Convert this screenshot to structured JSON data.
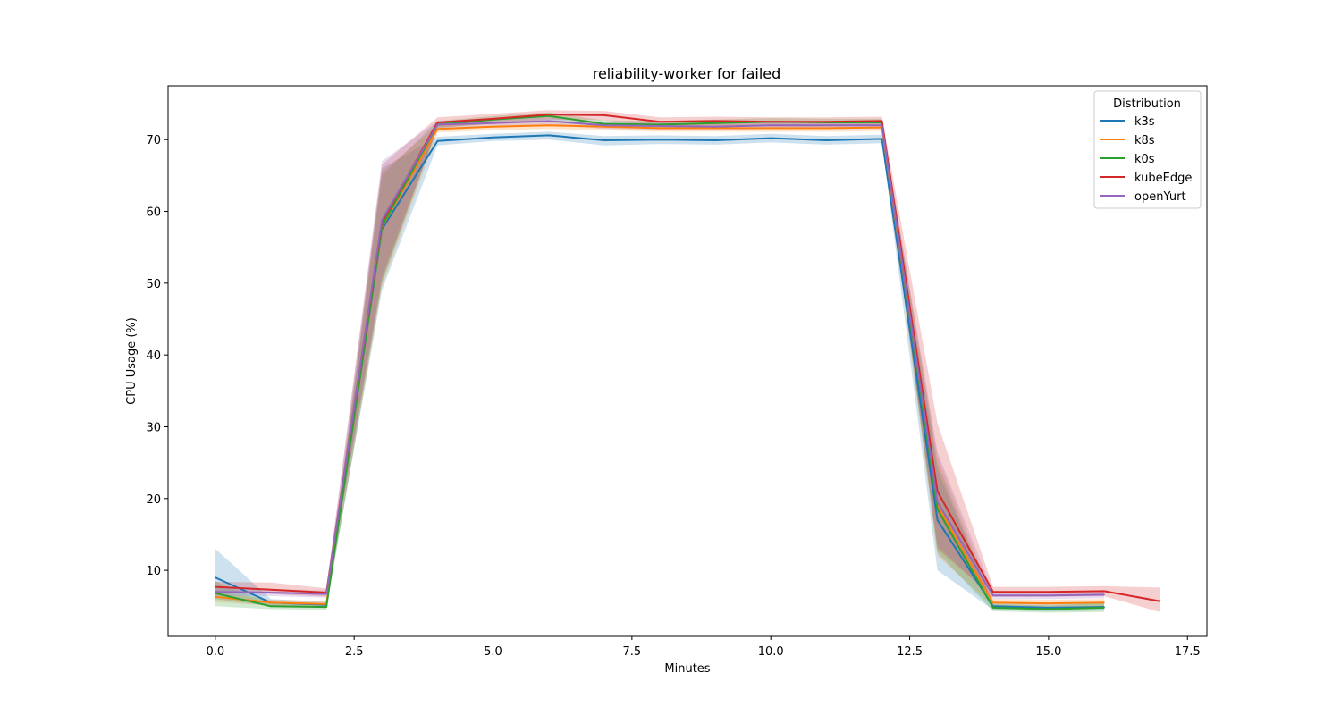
{
  "chart_data": {
    "type": "line",
    "title": "reliability-worker for failed",
    "xlabel": "Minutes",
    "ylabel": "CPU Usage (%)",
    "xlim": [
      -0.85,
      17.85
    ],
    "ylim": [
      0.8,
      77.5
    ],
    "xticks": [
      0.0,
      2.5,
      5.0,
      7.5,
      10.0,
      12.5,
      15.0,
      17.5
    ],
    "xtick_labels": [
      "0.0",
      "2.5",
      "5.0",
      "7.5",
      "10.0",
      "12.5",
      "15.0",
      "17.5"
    ],
    "yticks": [
      10,
      20,
      30,
      40,
      50,
      60,
      70
    ],
    "ytick_labels": [
      "10",
      "20",
      "30",
      "40",
      "50",
      "60",
      "70"
    ],
    "grid": false,
    "legend": {
      "title": "Distribution",
      "placement": "top-right"
    },
    "series": [
      {
        "name": "k3s",
        "color": "#1f77b4",
        "x": [
          0,
          1,
          2,
          3,
          4,
          5,
          6,
          7,
          8,
          9,
          10,
          11,
          12,
          13,
          14,
          15,
          16
        ],
        "values": [
          9.0,
          5.5,
          5.2,
          57.5,
          69.8,
          70.3,
          70.6,
          69.9,
          70.0,
          69.9,
          70.2,
          69.9,
          70.1,
          17.0,
          5.0,
          4.8,
          4.9
        ],
        "lower": [
          6.0,
          5.0,
          4.8,
          49.0,
          69.2,
          69.8,
          70.0,
          69.2,
          69.4,
          69.3,
          69.6,
          69.3,
          69.5,
          10.0,
          4.5,
          4.3,
          4.4
        ],
        "upper": [
          13.0,
          6.0,
          5.6,
          66.0,
          70.4,
          70.8,
          71.1,
          70.5,
          70.6,
          70.5,
          70.8,
          70.5,
          70.7,
          24.0,
          5.5,
          5.3,
          5.4
        ]
      },
      {
        "name": "k8s",
        "color": "#ff7f0e",
        "x": [
          0,
          1,
          2,
          3,
          4,
          5,
          6,
          7,
          8,
          9,
          10,
          11,
          12,
          13,
          14,
          15,
          16
        ],
        "values": [
          6.3,
          5.5,
          5.3,
          57.8,
          71.5,
          71.8,
          72.0,
          71.8,
          71.6,
          71.6,
          71.6,
          71.6,
          71.7,
          19.0,
          5.5,
          5.4,
          5.5
        ],
        "lower": [
          5.6,
          5.1,
          4.9,
          49.5,
          71.0,
          71.3,
          71.5,
          71.3,
          71.1,
          71.1,
          71.1,
          71.1,
          71.2,
          12.0,
          5.0,
          4.9,
          5.0
        ],
        "upper": [
          7.0,
          5.9,
          5.7,
          65.5,
          72.0,
          72.3,
          72.5,
          72.3,
          72.1,
          72.1,
          72.1,
          72.1,
          72.2,
          26.0,
          6.0,
          5.9,
          6.0
        ]
      },
      {
        "name": "k0s",
        "color": "#2ca02c",
        "x": [
          0,
          1,
          2,
          3,
          4,
          5,
          6,
          7,
          8,
          9,
          10,
          11,
          12,
          13,
          14,
          15,
          16
        ],
        "values": [
          6.8,
          5.0,
          4.9,
          57.9,
          72.1,
          72.8,
          73.3,
          72.2,
          72.1,
          72.3,
          72.5,
          72.4,
          72.4,
          18.5,
          4.8,
          4.6,
          4.8
        ],
        "lower": [
          5.0,
          4.6,
          4.5,
          50.0,
          71.6,
          72.3,
          72.8,
          71.7,
          71.6,
          71.8,
          72.0,
          71.9,
          71.9,
          12.5,
          4.3,
          4.1,
          4.2
        ],
        "upper": [
          8.5,
          5.4,
          5.3,
          65.0,
          72.6,
          73.3,
          73.8,
          72.7,
          72.6,
          72.8,
          73.0,
          72.9,
          72.9,
          25.0,
          5.3,
          5.1,
          5.5
        ]
      },
      {
        "name": "kubeEdge",
        "color": "#d62728",
        "x": [
          0,
          1,
          2,
          3,
          4,
          5,
          6,
          7,
          8,
          9,
          10,
          11,
          12,
          13,
          14,
          15,
          16,
          17
        ],
        "values": [
          7.7,
          7.3,
          6.9,
          58.5,
          72.4,
          72.9,
          73.5,
          73.4,
          72.5,
          72.6,
          72.5,
          72.5,
          72.6,
          21.0,
          7.0,
          7.0,
          7.1,
          5.7
        ],
        "lower": [
          7.0,
          6.7,
          6.3,
          50.5,
          71.7,
          72.2,
          72.8,
          72.7,
          71.8,
          71.9,
          71.8,
          71.8,
          71.9,
          13.0,
          6.3,
          6.3,
          6.4,
          4.2
        ],
        "upper": [
          8.4,
          8.3,
          7.5,
          66.5,
          73.1,
          73.6,
          74.1,
          74.0,
          73.1,
          73.2,
          73.1,
          73.1,
          73.2,
          30.5,
          7.7,
          7.7,
          7.8,
          7.6
        ]
      },
      {
        "name": "openYurt",
        "color": "#9467bd",
        "x": [
          0,
          1,
          2,
          3,
          4,
          5,
          6,
          7,
          8,
          9,
          10,
          11,
          12,
          13,
          14,
          15,
          16
        ],
        "values": [
          7.0,
          6.9,
          6.7,
          58.8,
          72.1,
          72.3,
          72.6,
          72.0,
          71.9,
          71.8,
          72.0,
          72.0,
          72.0,
          19.5,
          6.5,
          6.5,
          6.6
        ],
        "lower": [
          6.5,
          6.4,
          6.2,
          51.0,
          71.6,
          71.8,
          72.1,
          71.5,
          71.4,
          71.3,
          71.5,
          71.5,
          71.5,
          13.5,
          6.0,
          6.0,
          6.1
        ],
        "upper": [
          7.5,
          7.4,
          7.2,
          67.0,
          72.6,
          72.8,
          73.1,
          72.5,
          72.4,
          72.3,
          72.5,
          72.5,
          72.5,
          26.5,
          7.0,
          7.0,
          7.1
        ]
      }
    ]
  }
}
